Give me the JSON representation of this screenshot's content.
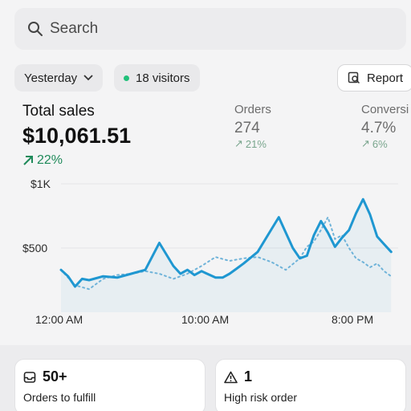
{
  "search": {
    "placeholder": "Search",
    "icon": "search-icon"
  },
  "filters": {
    "date_label": "Yesterday",
    "visitors_label": "18 visitors",
    "report_label": "Report"
  },
  "total_sales": {
    "label": "Total sales",
    "value": "$10,061.51",
    "change": "22%"
  },
  "metrics": [
    {
      "label": "Orders",
      "value": "274",
      "change": "21%"
    },
    {
      "label": "Conversi",
      "value": "4.7%",
      "change": "6%"
    }
  ],
  "colors": {
    "accent": "#1f97d1",
    "positive": "#1f8a5a",
    "visitor_dot": "#21c07a"
  },
  "chart_data": {
    "type": "line",
    "title": "",
    "xlabel": "",
    "ylabel": "",
    "x_ticks": [
      "12:00 AM",
      "10:00 AM",
      "8:00 PM"
    ],
    "y_ticks": [
      "$1K",
      "$500"
    ],
    "ylim": [
      0,
      1000
    ],
    "xlim": [
      0,
      24
    ],
    "grid": true,
    "series": [
      {
        "style": "solid",
        "x": [
          0,
          0.5,
          1,
          1.5,
          2,
          3,
          4,
          5,
          6,
          7,
          8,
          8.5,
          9,
          9.5,
          10,
          11,
          11.5,
          12,
          12.5,
          13,
          14,
          15,
          15.5,
          16,
          16.5,
          17,
          17.5,
          18,
          18.5,
          19,
          19.5,
          20,
          20.5,
          21,
          21.5,
          22,
          22.5,
          23,
          23.5
        ],
        "values": [
          330,
          280,
          200,
          260,
          250,
          280,
          270,
          300,
          330,
          540,
          360,
          300,
          330,
          290,
          320,
          270,
          270,
          300,
          340,
          380,
          470,
          650,
          740,
          620,
          500,
          420,
          440,
          600,
          710,
          620,
          510,
          580,
          640,
          770,
          880,
          760,
          590,
          530,
          470
        ]
      },
      {
        "style": "dotted",
        "x": [
          0,
          1,
          2,
          3,
          4,
          5,
          6,
          7,
          8,
          9,
          10,
          11,
          12,
          13,
          14,
          15,
          16,
          17,
          17.5,
          18,
          18.5,
          19,
          19.5,
          20,
          20.5,
          21,
          21.5,
          22,
          22.5,
          23,
          23.5
        ],
        "values": [
          330,
          210,
          180,
          260,
          290,
          300,
          320,
          300,
          260,
          300,
          360,
          430,
          400,
          420,
          430,
          390,
          330,
          420,
          510,
          550,
          640,
          740,
          570,
          600,
          500,
          420,
          390,
          350,
          380,
          320,
          280
        ]
      }
    ]
  },
  "cards": [
    {
      "count": "50+",
      "label": "Orders to fulfill",
      "icon": "inbox-icon"
    },
    {
      "count": "1",
      "label": "High risk order",
      "icon": "warning-icon"
    }
  ]
}
